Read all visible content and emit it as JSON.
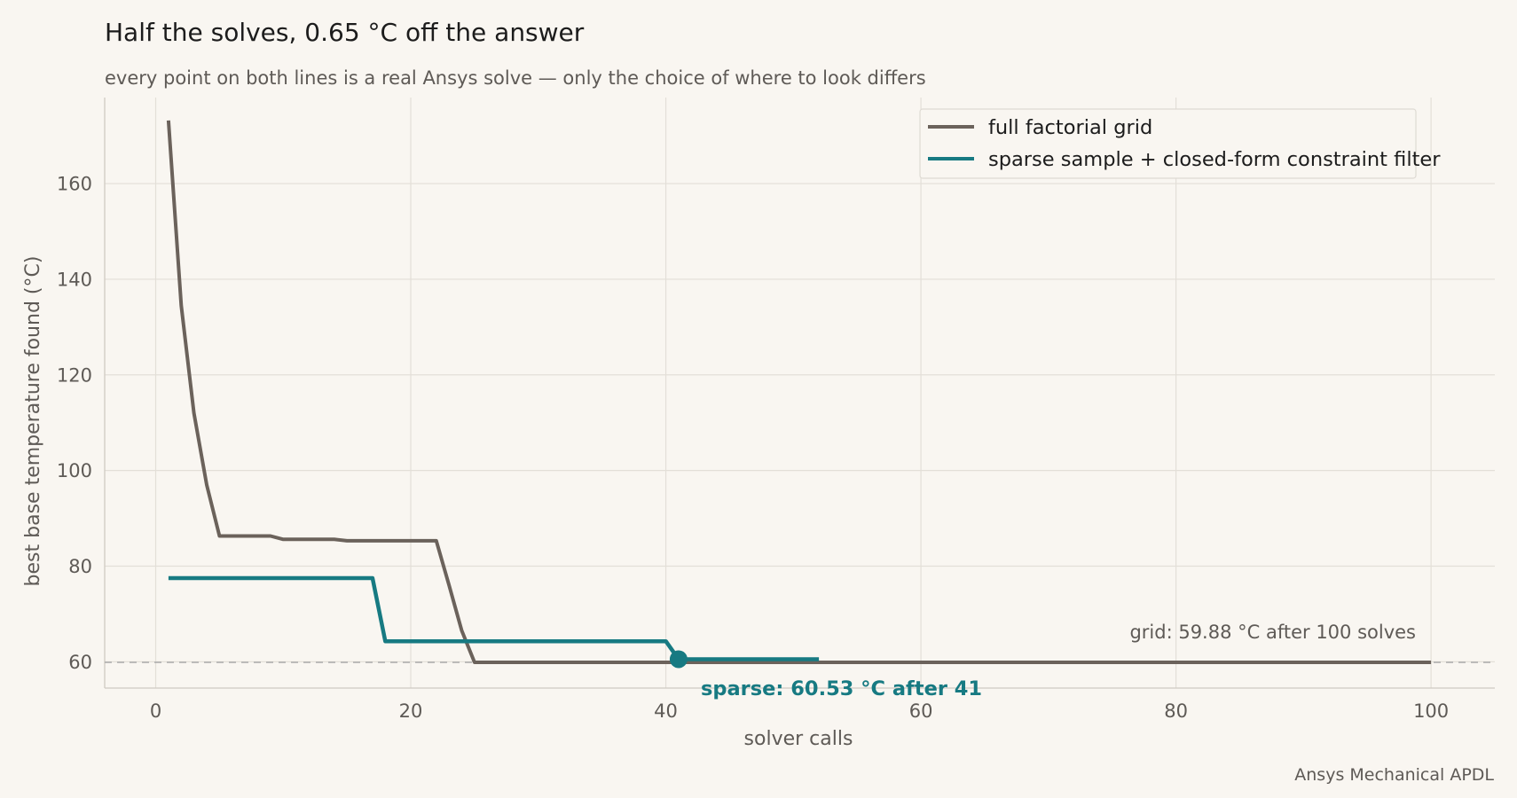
{
  "header": {
    "title": "Half the solves, 0.65 °C off the answer",
    "subtitle": "every point on both lines is a real Ansys solve — only the choice of where to look differs",
    "source": "Ansys Mechanical APDL"
  },
  "colors": {
    "grid_series": "#6b625b",
    "sparse_series": "#177a82",
    "background": "#f9f6f1",
    "gridline": "#e3dfd8",
    "reference_line": "#aaaaaa"
  },
  "chart_data": {
    "type": "line",
    "xlabel": "solver calls",
    "ylabel": "best base temperature found  (°C)",
    "xlim": [
      -4,
      105
    ],
    "ylim": [
      54.5,
      178
    ],
    "xticks": [
      0,
      20,
      40,
      60,
      80,
      100
    ],
    "yticks": [
      60,
      80,
      100,
      120,
      140,
      160
    ],
    "grid": true,
    "legend_position": "top-right",
    "reference_line": {
      "y": 59.88,
      "style": "dashed"
    },
    "series": [
      {
        "name": "full factorial grid",
        "x": [
          1,
          2,
          3,
          4,
          5,
          6,
          7,
          8,
          9,
          10,
          11,
          12,
          13,
          14,
          15,
          16,
          17,
          18,
          19,
          20,
          21,
          22,
          23,
          24,
          25,
          100
        ],
        "y": [
          173.2,
          134.5,
          112.0,
          97.0,
          86.3,
          86.3,
          86.3,
          86.3,
          86.3,
          85.6,
          85.6,
          85.6,
          85.6,
          85.6,
          85.3,
          85.3,
          85.3,
          85.3,
          85.3,
          85.3,
          85.3,
          85.3,
          76.0,
          66.5,
          59.88,
          59.88
        ]
      },
      {
        "name": "sparse sample + closed-form constraint filter",
        "x": [
          1,
          17,
          18,
          40,
          41,
          52
        ],
        "y": [
          77.5,
          77.5,
          64.3,
          64.3,
          60.53,
          60.53
        ]
      }
    ],
    "marker": {
      "x": 41,
      "y": 60.53
    },
    "annotations": {
      "grid": "grid: 59.88 °C after 100 solves",
      "sparse": "sparse: 60.53 °C after 41"
    }
  }
}
